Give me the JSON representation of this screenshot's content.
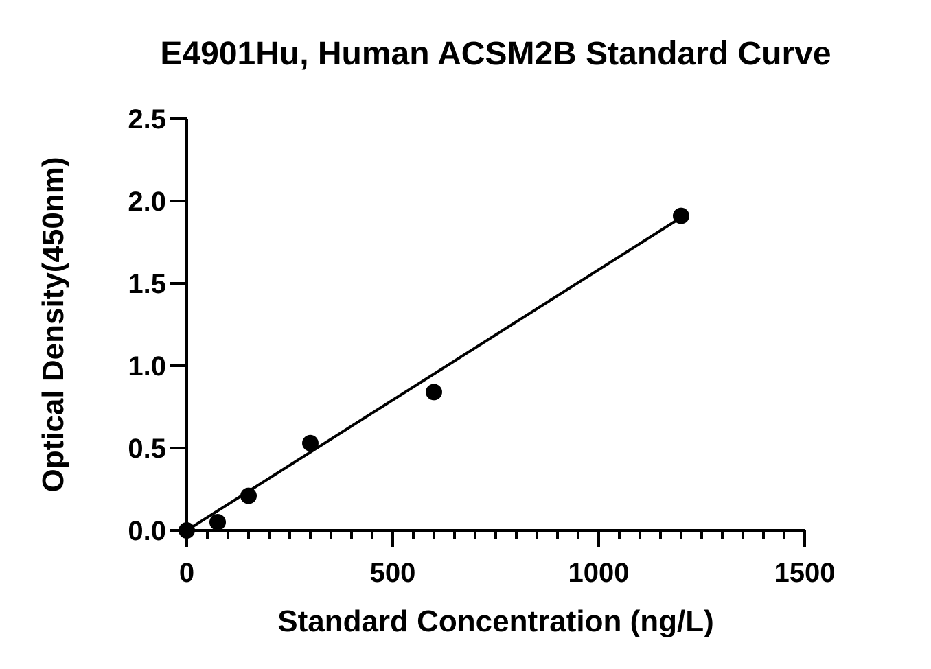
{
  "chart_data": {
    "type": "scatter",
    "title": "E4901Hu, Human ACSM2B Standard Curve",
    "xlabel": "Standard Concentration (ng/L)",
    "ylabel": "Optical Density(450nm)",
    "xlim": [
      0,
      1500
    ],
    "ylim": [
      0,
      2.5
    ],
    "x_ticks": [
      0,
      500,
      1000,
      1500
    ],
    "x_tick_labels": [
      "0",
      "500",
      "1000",
      "1500"
    ],
    "y_ticks": [
      0,
      0.5,
      1.0,
      1.5,
      2.0,
      2.5
    ],
    "y_tick_labels": [
      "0.0",
      "0.5",
      "1.0",
      "1.5",
      "2.0",
      "2.5"
    ],
    "x_minor_tick_step": 50,
    "grid": false,
    "points": [
      {
        "x": 0,
        "y": 0.0
      },
      {
        "x": 75,
        "y": 0.05
      },
      {
        "x": 150,
        "y": 0.21
      },
      {
        "x": 300,
        "y": 0.53
      },
      {
        "x": 600,
        "y": 0.84
      },
      {
        "x": 1200,
        "y": 1.91
      }
    ],
    "fit_line": {
      "x": [
        0,
        1200
      ],
      "y": [
        0.0,
        1.9
      ]
    },
    "colors": {
      "points": "#000000",
      "line": "#000000",
      "axes": "#000000"
    }
  }
}
